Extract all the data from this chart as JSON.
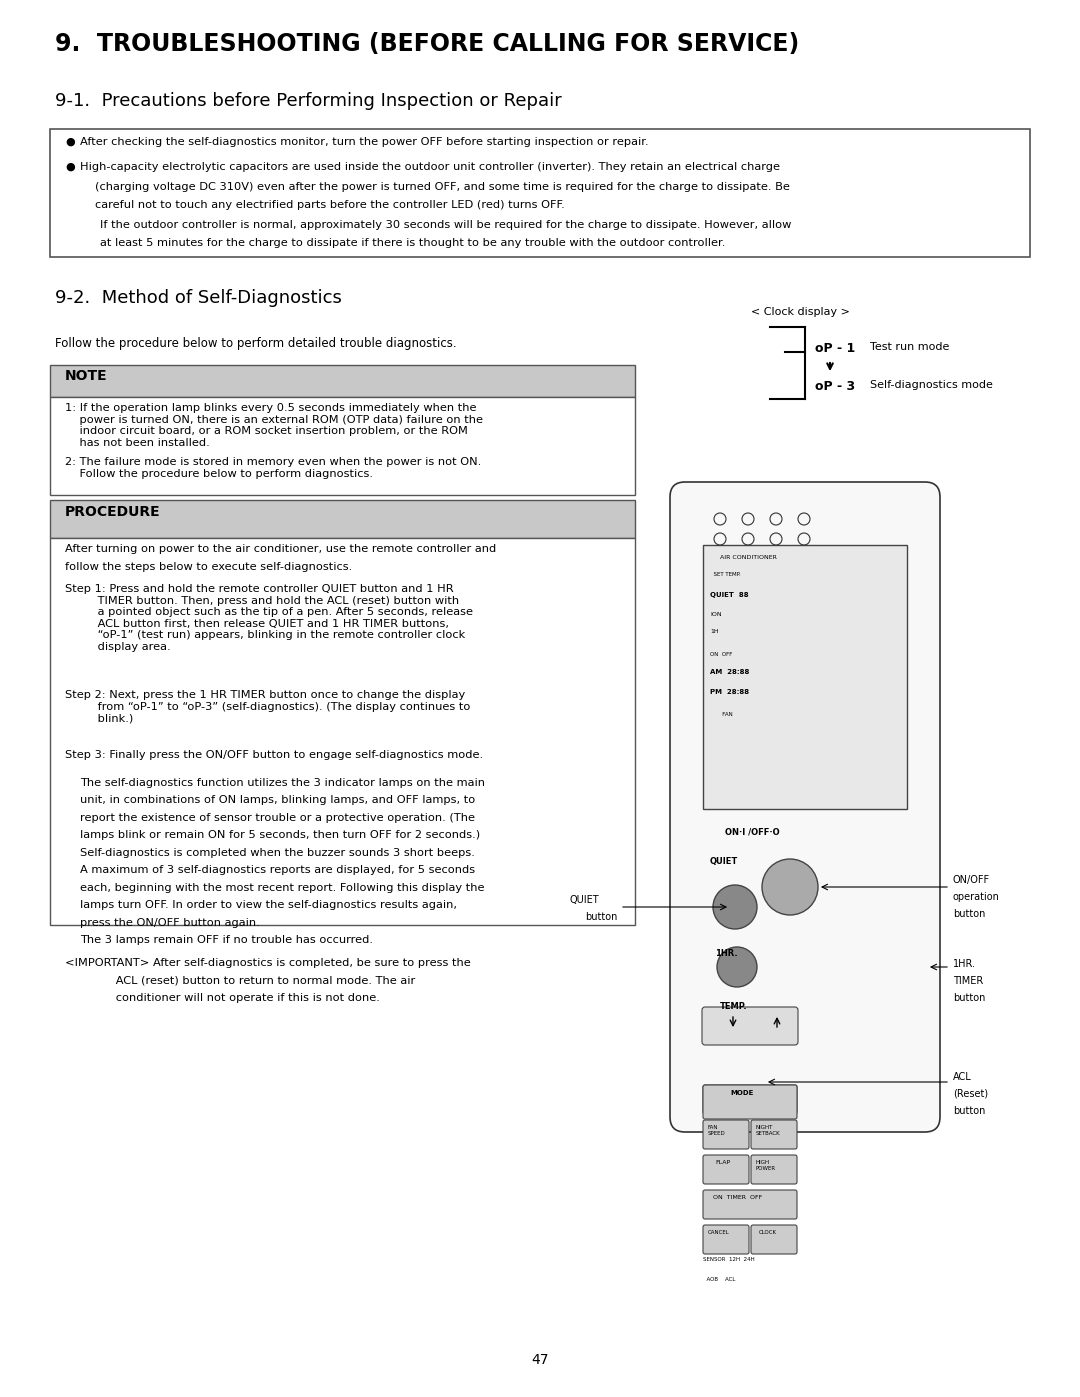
{
  "title": "9.  TROUBLESHOOTING (BEFORE CALLING FOR SERVICE)",
  "subtitle": "9-1.  Precautions before Performing Inspection or Repair",
  "section2_title": "9-2.  Method of Self-Diagnostics",
  "section2_intro": "Follow the procedure below to perform detailed trouble diagnostics.",
  "precautions_box": [
    "After checking the self-diagnostics monitor, turn the power OFF before starting inspection or repair.",
    "High-capacity electrolytic capacitors are used inside the outdoor unit controller (inverter). They retain an electrical charge\n(charging voltage DC 310V) even after the power is turned OFF, and some time is required for the charge to dissipate. Be\ncareful not to touch any electrified parts before the controller LED (red) turns OFF.",
    "If the outdoor controller is normal, approximately 30 seconds will be required for the charge to dissipate. However, allow\nat least 5 minutes for the charge to dissipate if there is thought to be any trouble with the outdoor controller."
  ],
  "note_items": [
    "1: If the operation lamp blinks every 0.5 seconds immediately when the\n     power is turned ON, there is an external ROM (OTP data) failure on the\n     indoor circuit board, or a ROM socket insertion problem, or the ROM\n     has not been installed.",
    "2: The failure mode is stored in memory even when the power is not ON.\n     Follow the procedure below to perform diagnostics."
  ],
  "procedure_intro": "After turning on power to the air conditioner, use the remote controller and\nfollow the steps below to execute self-diagnostics.",
  "procedure_steps": [
    "Step 1: Press and hold the remote controller QUIET button and 1 HR\n         TIMER button. Then, press and hold the ACL (reset) button with\n         a pointed object such as the tip of a pen. After 5 seconds, release\n         ACL button first, then release QUIET and 1 HR TIMER buttons,\n         “oP-1” (test run) appears, blinking in the remote controller clock\n         display area.",
    "Step 2: Next, press the 1 HR TIMER button once to change the display\n         from “oP-1” to “oP-3” (self-diagnostics). (The display continues to\n         blink.)",
    "Step 3: Finally press the ON/OFF button to engage self-diagnostics mode."
  ],
  "self_diag_text": [
    "The self-diagnostics function utilizes the 3 indicator lamps on the main",
    "unit, in combinations of ON lamps, blinking lamps, and OFF lamps, to",
    "report the existence of sensor trouble or a protective operation. (The",
    "lamps blink or remain ON for 5 seconds, then turn OFF for 2 seconds.)",
    "Self-diagnostics is completed when the buzzer sounds 3 short beeps.",
    "A maximum of 3 self-diagnostics reports are displayed, for 5 seconds",
    "each, beginning with the most recent report. Following this display the",
    "lamps turn OFF. In order to view the self-diagnostics results again,",
    "press the ON/OFF button again.",
    "The 3 lamps remain OFF if no trouble has occurred."
  ],
  "important_text": [
    "<IMPORTANT> After self-diagnostics is completed, be sure to press the",
    "              ACL (reset) button to return to normal mode. The air",
    "              conditioner will not operate if this is not done."
  ],
  "clock_display_label": "< Clock display >",
  "test_run_label": "Test run mode",
  "self_diag_label": "Self-diagnostics mode",
  "op1_text": "oP - 1",
  "op3_text": "oP - 3",
  "quiet_button_label": "QUIET\nbutton",
  "on_off_button_label": "ON/OFF\noperation\nbutton",
  "1hr_timer_label": "1HR.\nTIMER\nbutton",
  "acl_label": "ACL\n(Reset)\nbutton",
  "page_number": "47",
  "bg_color": "#ffffff",
  "text_color": "#000000",
  "box_bg": "#f0f0f0",
  "box_border": "#666666",
  "note_bg": "#d8d8d8",
  "procedure_bg": "#d8d8d8"
}
